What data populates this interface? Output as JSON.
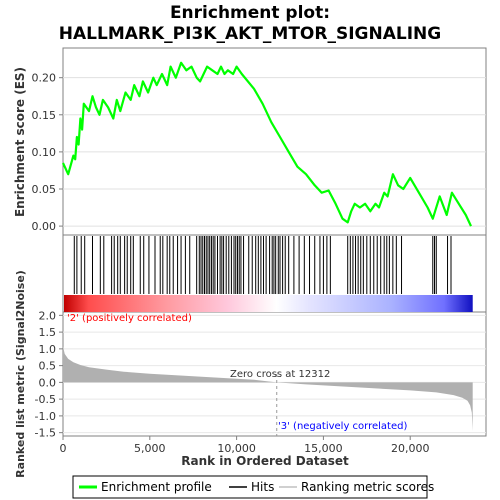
{
  "title_line1": "Enrichment plot:",
  "title_line2": "HALLMARK_PI3K_AKT_MTOR_SIGNALING",
  "colors": {
    "enrichment": "#00ff00",
    "hits": "#000000",
    "metric": "#b0b0b0",
    "positive_label": "#ff0000",
    "negative_label": "#0000ff",
    "frame": "#808080"
  },
  "legend": {
    "enrichment": "Enrichment profile",
    "hits": "Hits",
    "ranking": "Ranking metric scores"
  },
  "annotations": {
    "positive": "'2' (positively correlated)",
    "negative": "'3' (negatively correlated)",
    "zero_cross": "Zero cross at 12312"
  },
  "chart_data": [
    {
      "type": "line",
      "title": "",
      "ylabel": "Enrichment score (ES)",
      "xlim": [
        0,
        24000
      ],
      "ylim": [
        -0.012,
        0.24
      ],
      "yticks": [
        0.0,
        0.05,
        0.1,
        0.15,
        0.2
      ],
      "ytick_labels": [
        "0.00",
        "0.05",
        "0.10",
        "0.15",
        "0.20"
      ],
      "grid": true,
      "series": [
        {
          "name": "Enrichment profile",
          "x": [
            0,
            300,
            600,
            700,
            800,
            900,
            1000,
            1100,
            1200,
            1500,
            1700,
            1900,
            2100,
            2300,
            2600,
            2900,
            3100,
            3300,
            3600,
            3900,
            4100,
            4400,
            4600,
            4900,
            5200,
            5400,
            5700,
            6000,
            6200,
            6500,
            6800,
            7100,
            7400,
            7700,
            7900,
            8100,
            8300,
            8600,
            8900,
            9100,
            9300,
            9500,
            9800,
            10000,
            10300,
            11000,
            11500,
            12000,
            12500,
            13000,
            13500,
            14000,
            14500,
            14900,
            15300,
            15700,
            16100,
            16400,
            16600,
            16800,
            17100,
            17400,
            17700,
            18000,
            18200,
            18500,
            18700,
            19000,
            19300,
            19600,
            20000,
            20500,
            21000,
            21300,
            21700,
            22100,
            22400,
            22800,
            23200,
            23500
          ],
          "values": [
            0.085,
            0.07,
            0.095,
            0.09,
            0.12,
            0.11,
            0.145,
            0.13,
            0.165,
            0.155,
            0.175,
            0.16,
            0.15,
            0.17,
            0.16,
            0.145,
            0.17,
            0.155,
            0.18,
            0.17,
            0.19,
            0.175,
            0.195,
            0.18,
            0.2,
            0.19,
            0.205,
            0.19,
            0.215,
            0.2,
            0.22,
            0.21,
            0.215,
            0.2,
            0.195,
            0.205,
            0.215,
            0.21,
            0.205,
            0.215,
            0.205,
            0.21,
            0.205,
            0.215,
            0.205,
            0.185,
            0.165,
            0.14,
            0.12,
            0.1,
            0.08,
            0.07,
            0.055,
            0.045,
            0.048,
            0.03,
            0.01,
            0.005,
            0.02,
            0.03,
            0.025,
            0.03,
            0.02,
            0.03,
            0.025,
            0.045,
            0.04,
            0.07,
            0.055,
            0.05,
            0.065,
            0.045,
            0.025,
            0.01,
            0.04,
            0.015,
            0.045,
            0.03,
            0.015,
            0.0
          ]
        }
      ]
    },
    {
      "type": "hits",
      "xlim": [
        0,
        24000
      ],
      "hit_positions": [
        650,
        800,
        1050,
        1250,
        1700,
        2150,
        2350,
        2800,
        2950,
        3150,
        3300,
        3550,
        3700,
        3900,
        4050,
        4450,
        4650,
        4950,
        5300,
        5600,
        5750,
        6000,
        6150,
        6350,
        6600,
        6800,
        7050,
        7300,
        7700,
        7850,
        7950,
        8050,
        8150,
        8250,
        8350,
        8450,
        8550,
        8650,
        8750,
        8900,
        9050,
        9150,
        9250,
        9400,
        9550,
        9700,
        9850,
        9950,
        10050,
        10150,
        10250,
        10400,
        10700,
        10900,
        11100,
        11250,
        11400,
        11550,
        11700,
        11900,
        12050,
        12150,
        12250,
        12400,
        12500,
        12650,
        12800,
        13000,
        13300,
        13600,
        13900,
        14200,
        14500,
        14800,
        15000,
        15200,
        15400,
        16400,
        16550,
        16700,
        16850,
        17000,
        17150,
        17300,
        17500,
        17700,
        17900,
        18100,
        18300,
        18500,
        18650,
        18800,
        19000,
        19200,
        19500,
        21300,
        21400,
        21500,
        22150,
        22350
      ]
    },
    {
      "type": "area",
      "title": "",
      "xlabel": "Rank in Ordered Dataset",
      "ylabel": "Ranked list metric (Signal2Noise)",
      "xlim": [
        0,
        24000
      ],
      "ylim": [
        -1.6,
        2.1
      ],
      "xticks": [
        0,
        5000,
        10000,
        15000,
        20000
      ],
      "xtick_labels": [
        "0",
        "5,000",
        "10,000",
        "15,000",
        "20,000"
      ],
      "yticks": [
        -1.5,
        -1.0,
        -0.5,
        0.0,
        0.5,
        1.0,
        1.5,
        2.0
      ],
      "ytick_labels": [
        "-1.5",
        "-1.0",
        "-0.5",
        "0.0",
        "0.5",
        "1.0",
        "1.5",
        "2.0"
      ],
      "zero_cross": 12312,
      "series": [
        {
          "name": "Ranking metric scores",
          "x": [
            0,
            100,
            300,
            600,
            1000,
            1500,
            2500,
            3500,
            5000,
            7000,
            9000,
            11000,
            12312,
            14000,
            16000,
            18000,
            20000,
            21500,
            22500,
            23000,
            23300,
            23450,
            23550,
            23600
          ],
          "values": [
            1.08,
            0.85,
            0.7,
            0.6,
            0.52,
            0.45,
            0.38,
            0.32,
            0.26,
            0.2,
            0.14,
            0.08,
            0.0,
            -0.06,
            -0.12,
            -0.18,
            -0.24,
            -0.3,
            -0.38,
            -0.46,
            -0.55,
            -0.68,
            -0.9,
            -1.45
          ]
        }
      ]
    }
  ]
}
